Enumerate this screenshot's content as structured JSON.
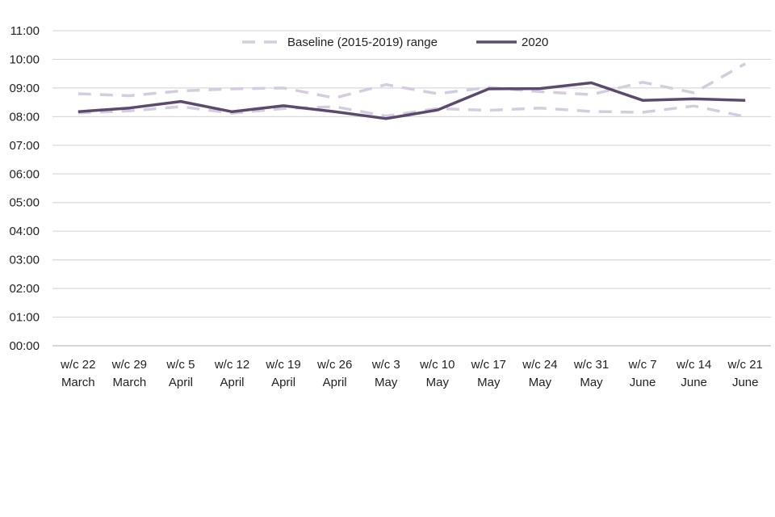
{
  "chart_data": {
    "type": "line",
    "title": "",
    "xlabel": "",
    "ylabel": "",
    "y_unit": "hours (HH:MM)",
    "ylim": [
      0,
      11
    ],
    "y_ticks": [
      0,
      1,
      2,
      3,
      4,
      5,
      6,
      7,
      8,
      9,
      10,
      11
    ],
    "y_tick_labels": [
      "00:00",
      "01:00",
      "02:00",
      "03:00",
      "04:00",
      "05:00",
      "06:00",
      "07:00",
      "08:00",
      "09:00",
      "10:00",
      "11:00"
    ],
    "grid": true,
    "legend_position": "top",
    "categories": [
      [
        "w/c 22",
        "March"
      ],
      [
        "w/c 29",
        "March"
      ],
      [
        "w/c 5",
        "April"
      ],
      [
        "w/c 12",
        "April"
      ],
      [
        "w/c 19",
        "April"
      ],
      [
        "w/c 26",
        "April"
      ],
      [
        "w/c 3",
        "May"
      ],
      [
        "w/c 10",
        "May"
      ],
      [
        "w/c 17",
        "May"
      ],
      [
        "w/c 24",
        "May"
      ],
      [
        "w/c 31",
        "May"
      ],
      [
        "w/c 7",
        "June"
      ],
      [
        "w/c 14",
        "June"
      ],
      [
        "w/c 21",
        "June"
      ]
    ],
    "series": [
      {
        "name": "Baseline (2015-2019) range",
        "role": "upper",
        "style": "dashed",
        "color": "#D3CDE0",
        "values": [
          8.8,
          8.73,
          8.9,
          8.97,
          9.0,
          8.65,
          9.12,
          8.8,
          9.02,
          8.87,
          8.77,
          9.2,
          8.83,
          9.85
        ]
      },
      {
        "name": "Baseline (2015-2019) range",
        "role": "lower",
        "style": "dashed",
        "color": "#D3CDE0",
        "values": [
          8.13,
          8.2,
          8.35,
          8.12,
          8.28,
          8.35,
          8.02,
          8.28,
          8.22,
          8.3,
          8.18,
          8.15,
          8.37,
          8.0
        ]
      },
      {
        "name": "2020",
        "style": "solid",
        "color": "#5B4A6E",
        "values": [
          8.17,
          8.3,
          8.53,
          8.17,
          8.38,
          8.17,
          7.93,
          8.23,
          8.97,
          8.98,
          9.18,
          8.57,
          8.62,
          8.57
        ]
      }
    ],
    "legend": [
      {
        "label": "Baseline (2015-2019) range",
        "style": "dashed",
        "color": "#D3CDE0"
      },
      {
        "label": "2020",
        "style": "solid",
        "color": "#5B4A6E"
      }
    ]
  }
}
